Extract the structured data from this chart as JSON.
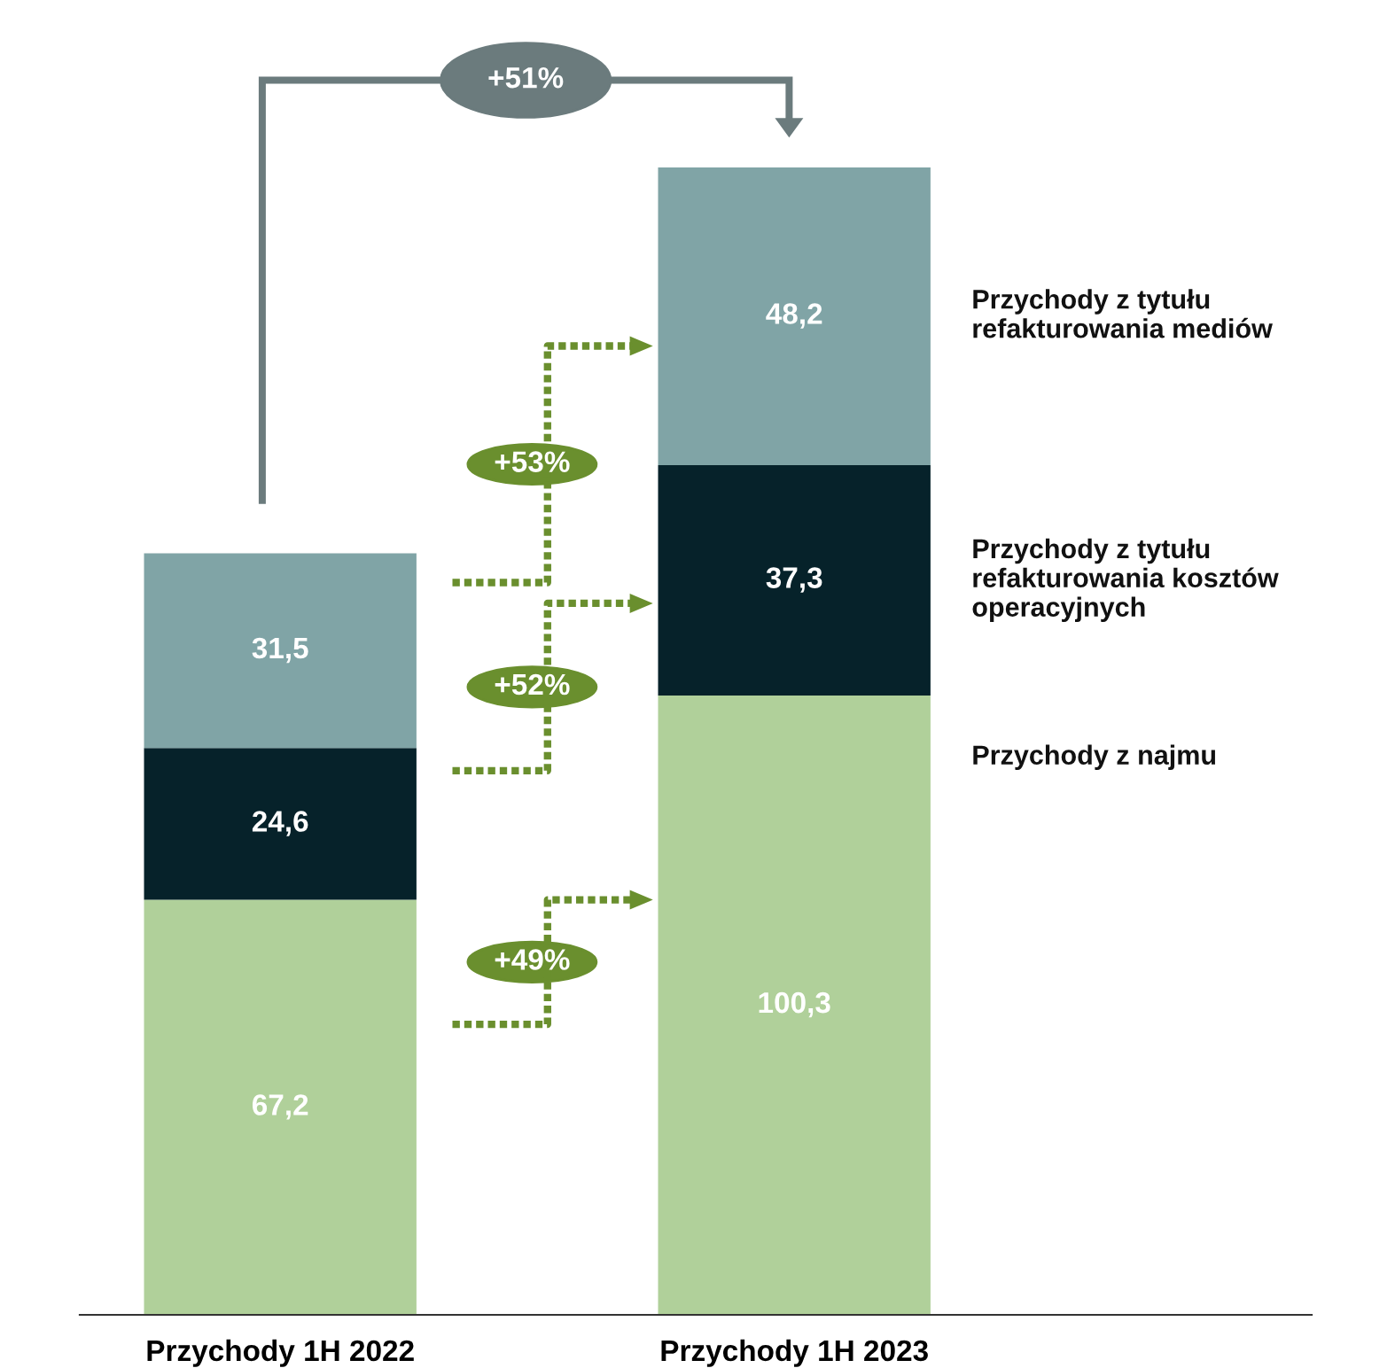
{
  "chart_data": {
    "type": "bar",
    "stacked": true,
    "categories": [
      "Przychody 1H 2022",
      "Przychody 1H 2023"
    ],
    "series": [
      {
        "name": "Przychody z najmu",
        "color": "#b0d09a",
        "values": [
          67.2,
          100.3
        ],
        "value_labels": [
          "67,2",
          "100,3"
        ]
      },
      {
        "name": "Przychody z tytułu refakturowania kosztów operacyjnych",
        "color": "#06222a",
        "values": [
          24.6,
          37.3
        ],
        "value_labels": [
          "24,6",
          "37,3"
        ]
      },
      {
        "name": "Przychody z tytułu refakturowania mediów",
        "color": "#80a4a6",
        "values": [
          31.5,
          48.2
        ],
        "value_labels": [
          "31,5",
          "48,2"
        ]
      }
    ],
    "annotations": [
      "+51%",
      "+49%",
      "+52%",
      "+53%"
    ],
    "tick_labels": "x",
    "legend": false,
    "grid": false
  }
}
